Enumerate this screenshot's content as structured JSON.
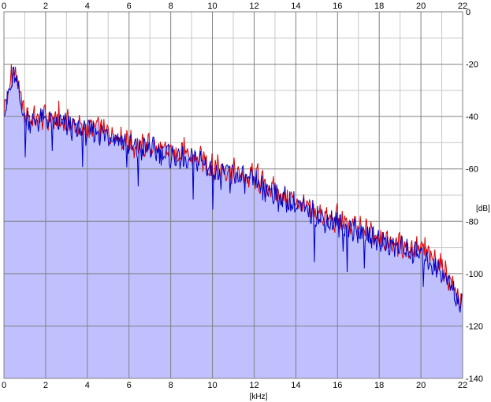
{
  "chart_data": {
    "type": "area",
    "title": "",
    "xlabel": "[kHz]",
    "ylabel": "[dB]",
    "xlim": [
      0,
      22
    ],
    "ylim": [
      -140,
      0
    ],
    "x_ticks": [
      0,
      2,
      4,
      6,
      8,
      10,
      12,
      14,
      16,
      18,
      20,
      22
    ],
    "x_tick_labels": [
      "0",
      "2",
      "4",
      "6",
      "8",
      "10",
      "12",
      "14",
      "16",
      "18",
      "20",
      "22"
    ],
    "y_ticks": [
      0,
      -20,
      -40,
      -60,
      -80,
      -100,
      -120,
      -140
    ],
    "y_tick_labels": [
      "0",
      "-20",
      "-40",
      "-60",
      "-80",
      "-100",
      "-120",
      "-140"
    ],
    "grid": true,
    "x_ticks_on_top": true,
    "y_axis_side": "right",
    "colors": {
      "fill": "#c0c0ff",
      "channel_1": "#dd0000",
      "channel_2": "#0000c0",
      "grid_major": "#808080",
      "grid_minor": "#c8c8c8"
    },
    "x": [
      0,
      0.5,
      1,
      1.5,
      2,
      2.5,
      3,
      3.5,
      4,
      4.5,
      5,
      5.5,
      6,
      6.5,
      7,
      7.5,
      8,
      8.5,
      9,
      9.5,
      10,
      10.5,
      11,
      11.5,
      12,
      12.5,
      13,
      13.5,
      14,
      14.5,
      15,
      15.5,
      16,
      16.5,
      17,
      17.5,
      18,
      18.5,
      19,
      19.5,
      20,
      20.5,
      21,
      21.5,
      22
    ],
    "series": [
      {
        "values": [
          -38,
          -22,
          -40,
          -41,
          -40,
          -42,
          -42,
          -44,
          -45,
          -44,
          -46,
          -47,
          -50,
          -52,
          -51,
          -53,
          -54,
          -55,
          -56,
          -56,
          -60,
          -60,
          -61,
          -63,
          -64,
          -66,
          -68,
          -71,
          -72,
          -75,
          -77,
          -79,
          -80,
          -81,
          -83,
          -84,
          -86,
          -88,
          -89,
          -90,
          -91,
          -94,
          -97,
          -104,
          -112
        ]
      },
      {
        "values": [
          -38,
          -24,
          -41,
          -42,
          -41,
          -43,
          -43,
          -45,
          -46,
          -46,
          -47,
          -48,
          -51,
          -53,
          -52,
          -54,
          -55,
          -56,
          -57,
          -57,
          -61,
          -61,
          -62,
          -64,
          -65,
          -67,
          -69,
          -72,
          -74,
          -76,
          -78,
          -80,
          -81,
          -83,
          -84,
          -86,
          -87,
          -89,
          -90,
          -92,
          -93,
          -96,
          -99,
          -106,
          -113
        ]
      }
    ]
  }
}
